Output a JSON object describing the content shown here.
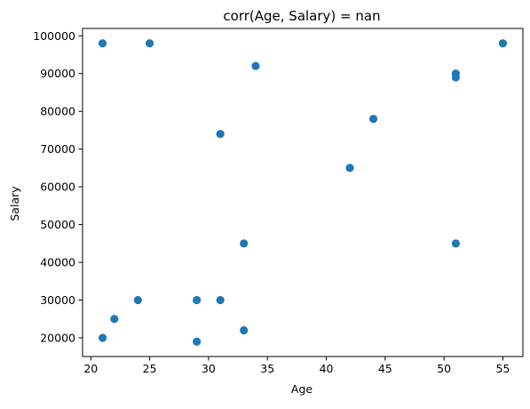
{
  "chart_data": {
    "type": "scatter",
    "title": "corr(Age, Salary) = nan",
    "xlabel": "Age",
    "ylabel": "Salary",
    "xlim": [
      19.3,
      56.7
    ],
    "ylim": [
      15050,
      101950
    ],
    "xticks": [
      20,
      25,
      30,
      35,
      40,
      45,
      50,
      55
    ],
    "yticks": [
      20000,
      30000,
      40000,
      50000,
      60000,
      70000,
      80000,
      90000,
      100000
    ],
    "xtick_labels": [
      "20",
      "25",
      "30",
      "35",
      "40",
      "45",
      "50",
      "55"
    ],
    "ytick_labels": [
      "20000",
      "30000",
      "40000",
      "50000",
      "60000",
      "70000",
      "80000",
      "90000",
      "100000"
    ],
    "grid": false,
    "marker_color": "#1f77b4",
    "points": [
      {
        "x": 21,
        "y": 98000
      },
      {
        "x": 25,
        "y": 98000
      },
      {
        "x": 34,
        "y": 92000
      },
      {
        "x": 51,
        "y": 90000
      },
      {
        "x": 51,
        "y": 89000
      },
      {
        "x": 55,
        "y": 98000
      },
      {
        "x": 44,
        "y": 78000
      },
      {
        "x": 31,
        "y": 74000
      },
      {
        "x": 42,
        "y": 65000
      },
      {
        "x": 33,
        "y": 45000
      },
      {
        "x": 51,
        "y": 45000
      },
      {
        "x": 24,
        "y": 30000
      },
      {
        "x": 29,
        "y": 30000
      },
      {
        "x": 31,
        "y": 30000
      },
      {
        "x": 22,
        "y": 25000
      },
      {
        "x": 33,
        "y": 22000
      },
      {
        "x": 21,
        "y": 20000
      },
      {
        "x": 29,
        "y": 19000
      }
    ]
  }
}
